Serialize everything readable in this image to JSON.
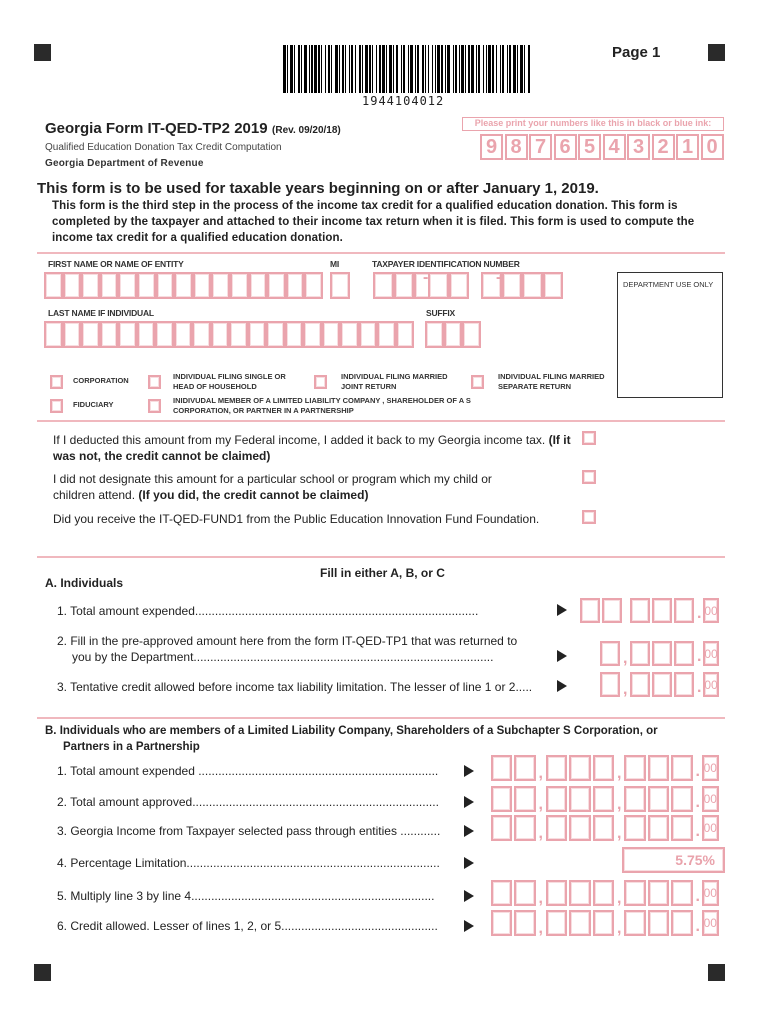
{
  "header": {
    "page_label": "Page 1",
    "barcode_number": "1944104012",
    "form_title": "Georgia Form IT-QED-TP2 2019",
    "revision": "(Rev. 09/20/18)",
    "subtitle": "Qualified Education Donation Tax Credit Computation",
    "department": "Georgia Department of Revenue",
    "ink_instruction": "Please print your numbers like this in black or blue ink:",
    "sample_digits": [
      "9",
      "8",
      "7",
      "6",
      "5",
      "4",
      "3",
      "2",
      "1",
      "0"
    ]
  },
  "intro": {
    "heading": "This form is to be used for taxable years beginning on or after January 1,  2019.",
    "body": "This form is the third step in the process of the income tax credit for a qualified education donation. This form is completed by the taxpayer and attached to their income tax return when it is filed. This form is used to compute the income tax credit for a qualified education donation."
  },
  "identity": {
    "first_name_label": "FIRST NAME OR NAME OF ENTITY",
    "mi_label": "MI",
    "tin_label": "TAXPAYER IDENTIFICATION NUMBER",
    "last_name_label": "LAST NAME IF INDIVIDUAL",
    "suffix_label": "SUFFIX",
    "dept_use_label": "DEPARTMENT USE ONLY"
  },
  "filing_types": [
    "CORPORATION",
    "INDIVIDUAL FILING SINGLE OR HEAD OF HOUSEHOLD",
    "INDIVIDUAL FILING MARRIED JOINT RETURN",
    "INDIVIDUAL FILING MARRIED SEPARATE RETURN",
    "FIDUCIARY",
    "INIDIVUDAL MEMBER OF A LIMITED LIABILITY COMPANY , SHAREHOLDER OF A S CORPORATION, OR PARTNER IN A PARTNERSHIP"
  ],
  "questions": [
    {
      "text": "If I deducted this amount from my Federal income, I added it back to my Georgia income tax.",
      "note": "(If it was not, the credit cannot be claimed)"
    },
    {
      "text": "I did not designate this amount for a particular school or program which my child or children attend.",
      "note": "(If you did, the credit cannot be claimed)"
    },
    {
      "text": "Did you receive the IT-QED-FUND1 from the Public Education Innovation Fund Foundation.",
      "note": ""
    }
  ],
  "fill_instruction": "Fill in either A, B, or C",
  "section_a": {
    "title": "A.  Individuals",
    "lines": [
      "1. Total amount expended.....................................................................................",
      "2. Fill in the pre-approved amount here from the form IT-QED-TP1 that was returned to",
      "you by the Department..........................................................................................",
      "3. Tentative credit allowed before income tax liability limitation. The lesser of line 1 or 2....."
    ],
    "cents": "00"
  },
  "section_b": {
    "title": "B.  Individuals who are members of a Limited Liability Company, Shareholders of a Subchapter S Corporation, or",
    "title_cont": "Partners in a Partnership",
    "lines": [
      "1. Total amount expended ........................................................................",
      "2. Total amount approved..........................................................................",
      "3. Georgia Income from Taxpayer selected pass through entities ............",
      "4. Percentage Limitation............................................................................",
      "5. Multiply line 3 by line 4.........................................................................",
      "6. Credit allowed. Lesser of lines 1, 2, or 5..............................................."
    ],
    "percentage_value": "5.75%",
    "cents": "00"
  },
  "colors": {
    "form_pink": "#eaa4ad",
    "text": "#222222"
  }
}
